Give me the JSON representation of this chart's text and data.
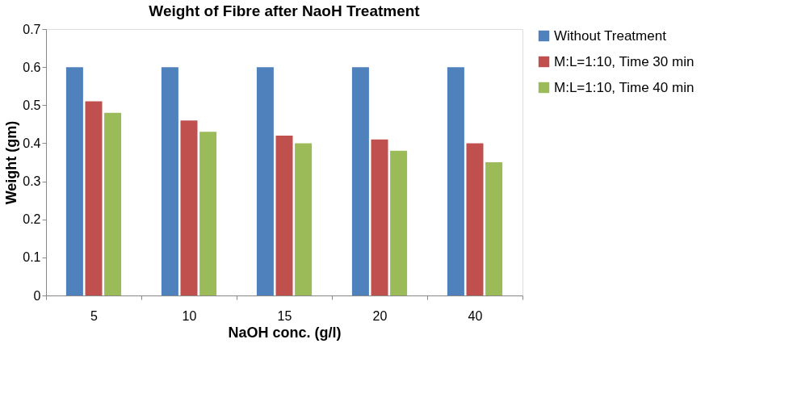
{
  "chart_data": {
    "type": "bar",
    "title": "Weight of Fibre after NaoH Treatment",
    "xlabel": "NaOH conc. (g/l)",
    "ylabel": "Weight (gm)",
    "categories": [
      "5",
      "10",
      "15",
      "20",
      "40"
    ],
    "series": [
      {
        "name": "Without Treatment",
        "color": "#4f81bd",
        "values": [
          0.6,
          0.6,
          0.6,
          0.6,
          0.6
        ]
      },
      {
        "name": "M:L=1:10, Time 30 min",
        "color": "#c0504d",
        "values": [
          0.51,
          0.46,
          0.42,
          0.41,
          0.4
        ]
      },
      {
        "name": "M:L=1:10, Time 40 min",
        "color": "#9bbb59",
        "values": [
          0.48,
          0.43,
          0.4,
          0.38,
          0.35
        ]
      }
    ],
    "ylim": [
      0,
      0.7
    ],
    "yticks": [
      0,
      0.1,
      0.2,
      0.3,
      0.4,
      0.5,
      0.6,
      0.7
    ],
    "grid": false,
    "legend": "right"
  }
}
